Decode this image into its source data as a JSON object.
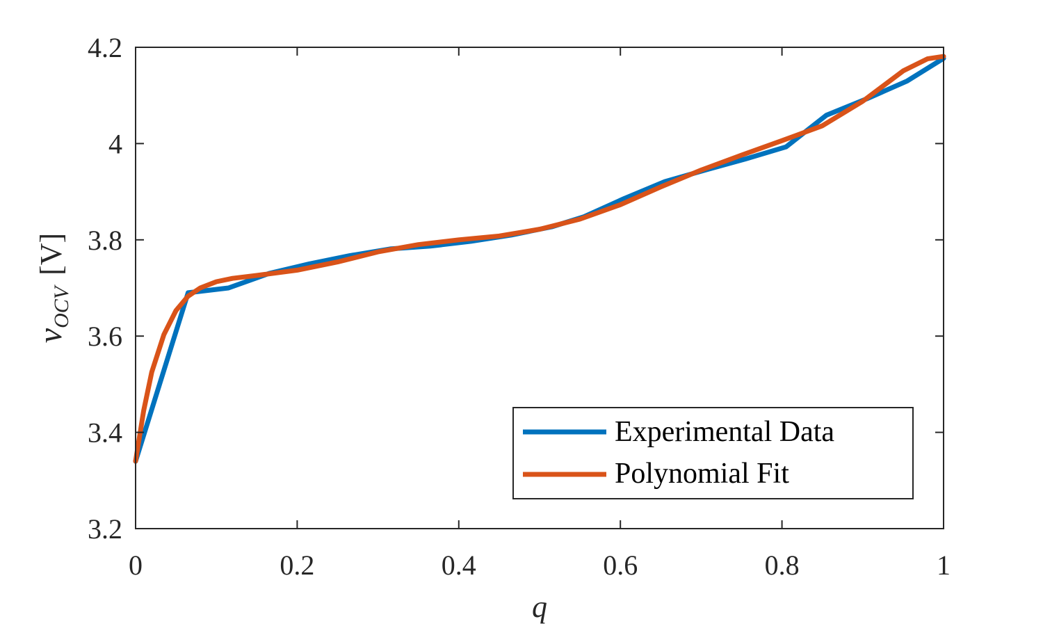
{
  "chart_data": {
    "type": "line",
    "title": "",
    "xlabel": "q",
    "ylabel": {
      "main": "v",
      "subscript": "OCV",
      "unit": "[V]"
    },
    "xlim": [
      0,
      1
    ],
    "ylim": [
      3.2,
      4.2
    ],
    "xticks": [
      0,
      0.2,
      0.4,
      0.6,
      0.8,
      1
    ],
    "xtick_labels": [
      "0",
      "0.2",
      "0.4",
      "0.6",
      "0.8",
      "1"
    ],
    "yticks": [
      3.2,
      3.4,
      3.6,
      3.8,
      4.0,
      4.2
    ],
    "ytick_labels": [
      "3.2",
      "3.4",
      "3.6",
      "3.8",
      "4",
      "4.2"
    ],
    "grid": false,
    "legend": {
      "placement": "bottom-right"
    },
    "series": [
      {
        "name": "Experimental Data",
        "color": "#0072BD",
        "x": [
          0,
          0.065,
          0.115,
          0.165,
          0.215,
          0.265,
          0.315,
          0.365,
          0.415,
          0.465,
          0.515,
          0.555,
          0.605,
          0.655,
          0.705,
          0.755,
          0.805,
          0.855,
          0.905,
          0.955,
          1.0
        ],
        "y": [
          3.34,
          3.69,
          3.7,
          3.73,
          3.75,
          3.767,
          3.781,
          3.787,
          3.797,
          3.81,
          3.827,
          3.848,
          3.886,
          3.921,
          3.945,
          3.968,
          3.993,
          4.059,
          4.093,
          4.13,
          4.177
        ]
      },
      {
        "name": "Polynomial Fit",
        "color": "#D95319",
        "x": [
          0,
          0.01,
          0.02,
          0.035,
          0.05,
          0.065,
          0.08,
          0.1,
          0.12,
          0.15,
          0.2,
          0.25,
          0.3,
          0.35,
          0.4,
          0.45,
          0.5,
          0.55,
          0.6,
          0.65,
          0.7,
          0.75,
          0.8,
          0.85,
          0.9,
          0.95,
          0.98,
          1.0
        ],
        "y": [
          3.34,
          3.445,
          3.525,
          3.603,
          3.653,
          3.683,
          3.7,
          3.713,
          3.72,
          3.726,
          3.737,
          3.754,
          3.775,
          3.79,
          3.8,
          3.808,
          3.822,
          3.843,
          3.873,
          3.91,
          3.945,
          3.976,
          4.006,
          4.037,
          4.088,
          4.151,
          4.176,
          4.181
        ]
      }
    ]
  }
}
